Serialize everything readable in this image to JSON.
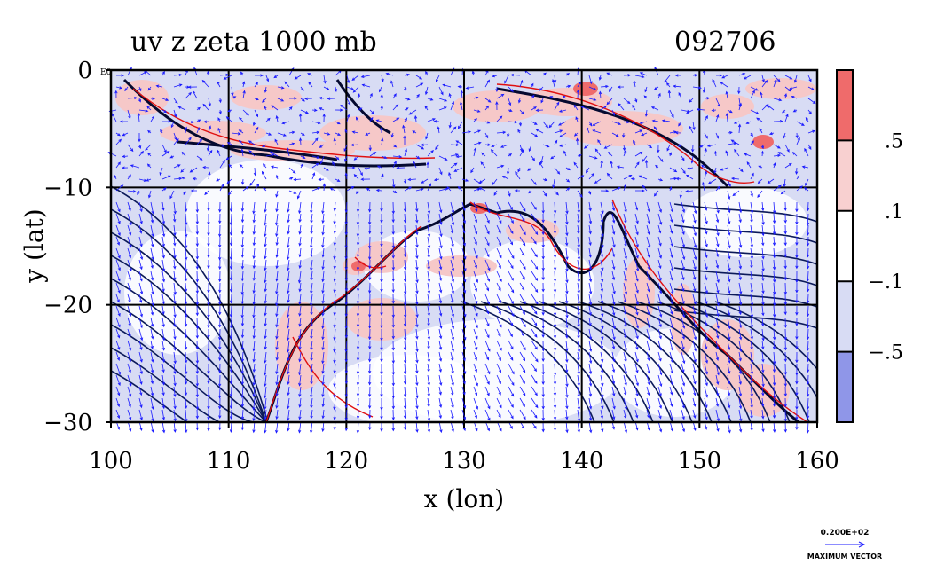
{
  "chart_data": {
    "type": "heatmap",
    "title": "uv z zeta 1000 mb",
    "date_label": "092706",
    "xlabel": "x (lon)",
    "ylabel": "y (lat)",
    "xlim": [
      100,
      160
    ],
    "ylim": [
      -30,
      0
    ],
    "xticks": [
      100,
      110,
      120,
      130,
      140,
      150,
      160
    ],
    "xtick_labels": [
      "100",
      "110",
      "120",
      "130",
      "140",
      "150",
      "160"
    ],
    "yticks": [
      0,
      -10,
      -20,
      -30
    ],
    "ytick_labels": [
      "0",
      "−10",
      "−20",
      "−30"
    ],
    "corner_label": "E0",
    "grid": true,
    "colorbar": {
      "labels": [
        ".5",
        ".1",
        "−.1",
        "−.5"
      ],
      "boundaries": [
        0.5,
        0.1,
        -0.1,
        -0.5
      ],
      "colors": [
        "#ef6b6b",
        "#f8d0d0",
        "#ffffff",
        "#d8dcf4",
        "#8f96e8"
      ]
    },
    "vector_legend": {
      "value": "0.200E+02",
      "label": "MAXIMUM VECTOR"
    },
    "colors": {
      "contour": "#0c1a5a",
      "positive_contour": "#e01010",
      "vectors": "#1a1aff",
      "negative_fill": "#d8dcf4",
      "positive_fill": "#f6c8c8"
    }
  }
}
